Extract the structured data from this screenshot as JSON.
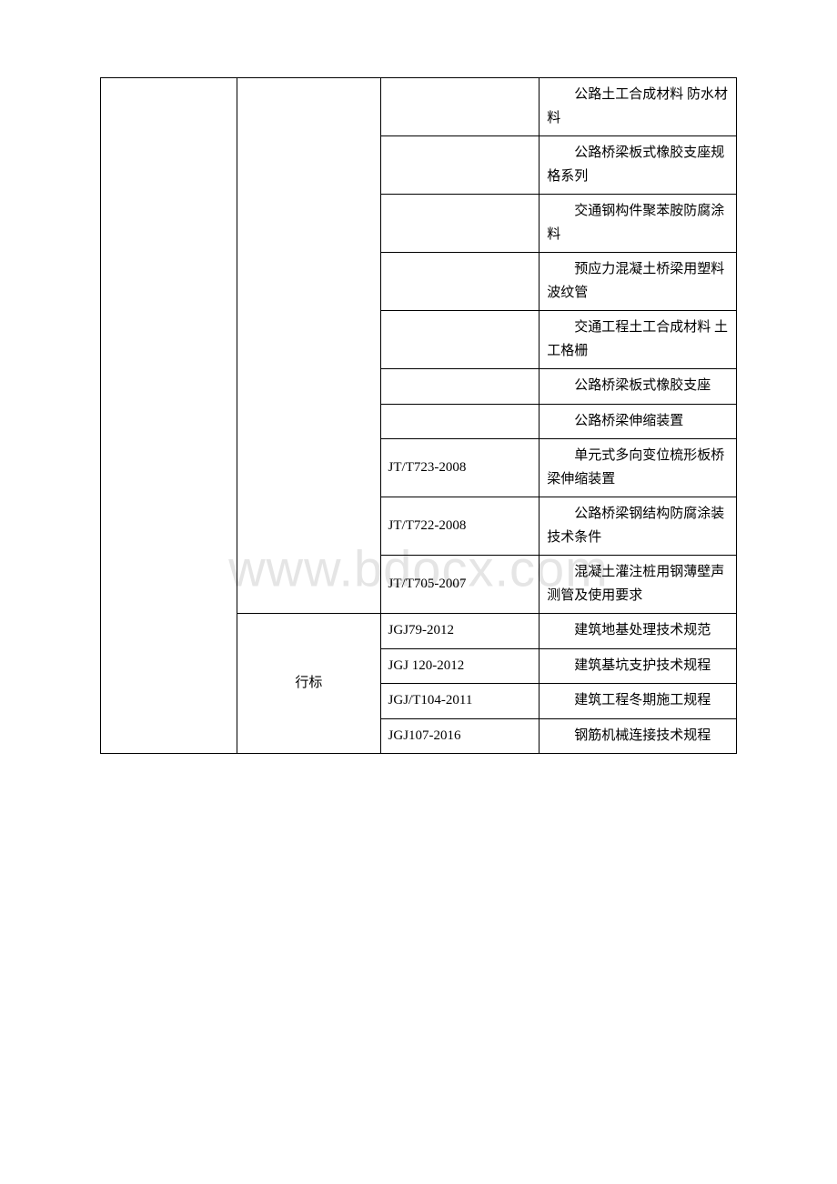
{
  "watermark": "www.bdocx.com",
  "table": {
    "border_color": "#000000",
    "background_color": "#ffffff",
    "text_color": "#000000",
    "font_size": 15,
    "columns": [
      {
        "width": "21.5%"
      },
      {
        "width": "22.5%"
      },
      {
        "width": "25%"
      },
      {
        "width": "31%"
      }
    ],
    "row_groups": [
      {
        "col1": "",
        "col2": "",
        "col1_rowspan": 14,
        "col2_rowspan": 10,
        "rows": [
          {
            "code": "",
            "desc": "公路土工合成材料 防水材料"
          },
          {
            "code": "",
            "desc": "公路桥梁板式橡胶支座规格系列"
          },
          {
            "code": "",
            "desc": "交通钢构件聚苯胺防腐涂料"
          },
          {
            "code": "",
            "desc": "预应力混凝土桥梁用塑料波纹管"
          },
          {
            "code": "",
            "desc": "交通工程土工合成材料 土工格栅"
          },
          {
            "code": "",
            "desc": "公路桥梁板式橡胶支座"
          },
          {
            "code": "",
            "desc": "公路桥梁伸缩装置"
          },
          {
            "code": "JT/T723-2008",
            "desc": "单元式多向变位梳形板桥梁伸缩装置"
          },
          {
            "code": "JT/T722-2008",
            "desc": "公路桥梁钢结构防腐涂装技术条件"
          },
          {
            "code": "JT/T705-2007",
            "desc": "混凝土灌注桩用钢薄壁声测管及使用要求"
          }
        ]
      },
      {
        "col2": "行标",
        "col2_rowspan": 4,
        "rows": [
          {
            "code": "JGJ79-2012",
            "desc": "建筑地基处理技术规范"
          },
          {
            "code": "JGJ 120-2012",
            "desc": "建筑基坑支护技术规程"
          },
          {
            "code": "JGJ/T104-2011",
            "desc": "建筑工程冬期施工规程"
          },
          {
            "code": "JGJ107-2016",
            "desc": "钢筋机械连接技术规程"
          }
        ]
      }
    ]
  }
}
